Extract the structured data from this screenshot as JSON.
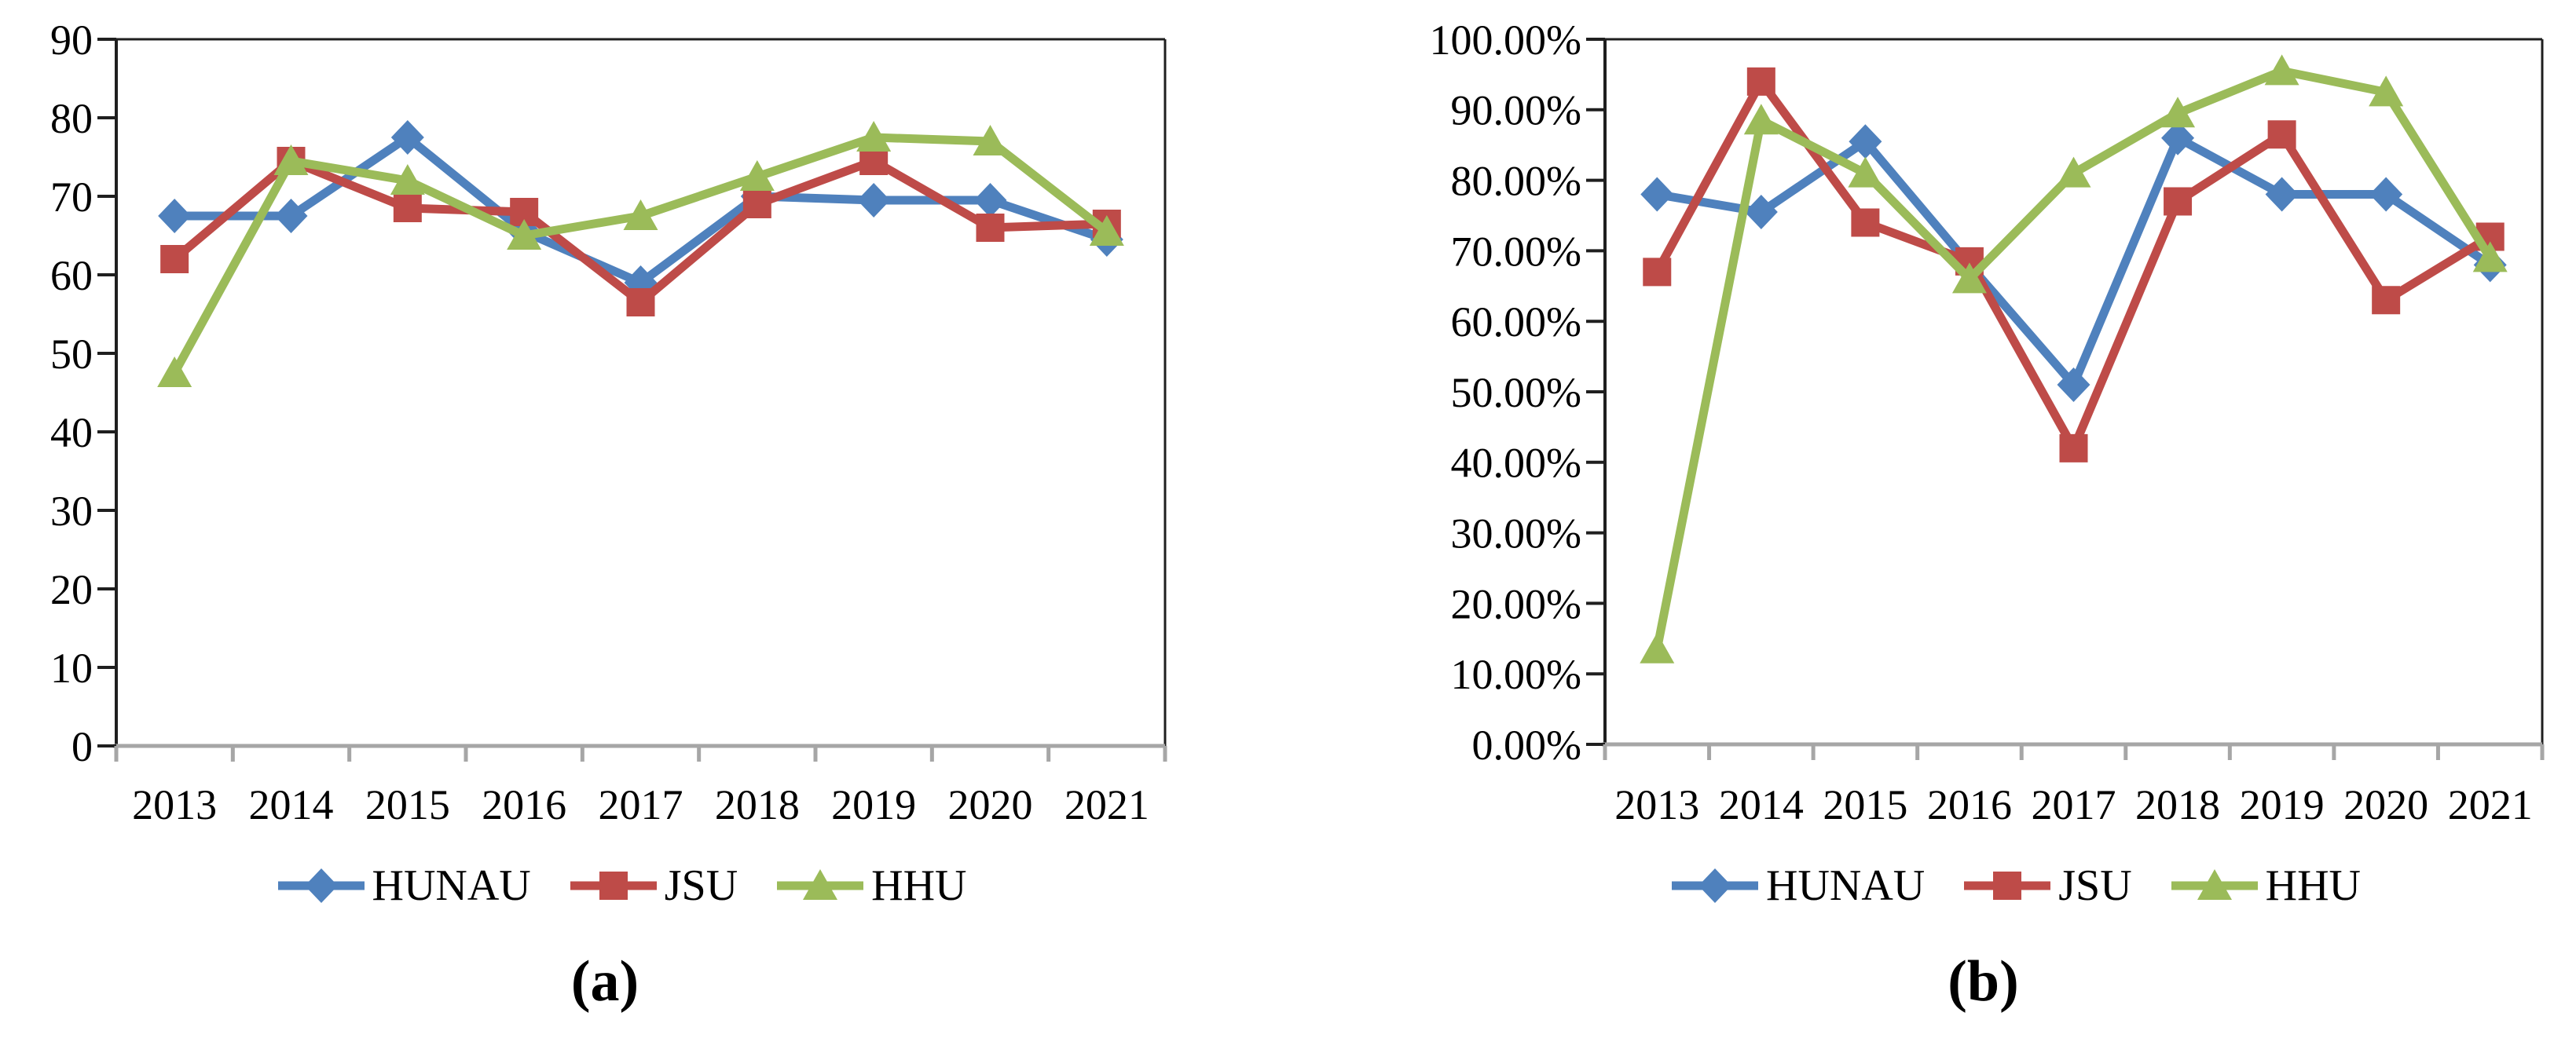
{
  "figure": {
    "description": "Two side-by-side line charts comparing HUNAU, JSU and HHU from 2013 to 2021",
    "captions": [
      "(a)",
      "(b)"
    ]
  },
  "colors": {
    "hunau_blue": "#4F81BD",
    "jsu_red": "#BE4B48",
    "hhu_green": "#9BBB59",
    "axis_black": "#1f1f1f",
    "axis_grey": "#A6A6A6",
    "text": "#000000"
  },
  "chart_data": [
    {
      "id": "a",
      "type": "line",
      "caption": "(a)",
      "title": "",
      "xlabel": "",
      "ylabel": "",
      "grid": false,
      "legend_position": "bottom",
      "categories": [
        "2013",
        "2014",
        "2015",
        "2016",
        "2017",
        "2018",
        "2019",
        "2020",
        "2021"
      ],
      "ylim": [
        0,
        90
      ],
      "y_ticks": [
        {
          "value": 90,
          "label": "90"
        },
        {
          "value": 80,
          "label": "80"
        },
        {
          "value": 70,
          "label": "70"
        },
        {
          "value": 60,
          "label": "60"
        },
        {
          "value": 50,
          "label": "50"
        },
        {
          "value": 40,
          "label": "40"
        },
        {
          "value": 30,
          "label": "30"
        },
        {
          "value": 20,
          "label": "20"
        },
        {
          "value": 10,
          "label": "10"
        },
        {
          "value": 0,
          "label": "0"
        }
      ],
      "series": [
        {
          "name": "HUNAU",
          "marker": "diamond",
          "color": "#4F81BD",
          "values": [
            67.5,
            67.5,
            77.5,
            65.5,
            59,
            70,
            69.5,
            69.5,
            64.5
          ]
        },
        {
          "name": "JSU",
          "marker": "square",
          "color": "#BE4B48",
          "values": [
            62,
            74.5,
            68.5,
            68,
            56.5,
            69,
            74.5,
            66,
            66.5
          ]
        },
        {
          "name": "HHU",
          "marker": "triangle",
          "color": "#9BBB59",
          "values": [
            47.5,
            74.5,
            72,
            65,
            67.5,
            72.5,
            77.5,
            77,
            65.5
          ]
        }
      ]
    },
    {
      "id": "b",
      "type": "line",
      "caption": "(b)",
      "title": "",
      "xlabel": "",
      "ylabel": "",
      "grid": false,
      "legend_position": "bottom",
      "categories": [
        "2013",
        "2014",
        "2015",
        "2016",
        "2017",
        "2018",
        "2019",
        "2020",
        "2021"
      ],
      "ylim": [
        0,
        100
      ],
      "y_ticks": [
        {
          "value": 100,
          "label": "100.00%"
        },
        {
          "value": 90,
          "label": "90.00%"
        },
        {
          "value": 80,
          "label": "80.00%"
        },
        {
          "value": 70,
          "label": "70.00%"
        },
        {
          "value": 60,
          "label": "60.00%"
        },
        {
          "value": 50,
          "label": "50.00%"
        },
        {
          "value": 40,
          "label": "40.00%"
        },
        {
          "value": 30,
          "label": "30.00%"
        },
        {
          "value": 20,
          "label": "20.00%"
        },
        {
          "value": 10,
          "label": "10.00%"
        },
        {
          "value": 0,
          "label": "0.00%"
        }
      ],
      "series": [
        {
          "name": "HUNAU",
          "marker": "diamond",
          "color": "#4F81BD",
          "values": [
            78,
            75.5,
            85.5,
            68,
            51,
            86,
            78,
            78,
            68
          ]
        },
        {
          "name": "JSU",
          "marker": "square",
          "color": "#BE4B48",
          "values": [
            67,
            94,
            74,
            68.5,
            42,
            77,
            86.5,
            63,
            72
          ]
        },
        {
          "name": "HHU",
          "marker": "triangle",
          "color": "#9BBB59",
          "values": [
            13.5,
            88.5,
            81,
            66,
            81,
            89.5,
            95.5,
            92.5,
            69
          ]
        }
      ]
    }
  ]
}
